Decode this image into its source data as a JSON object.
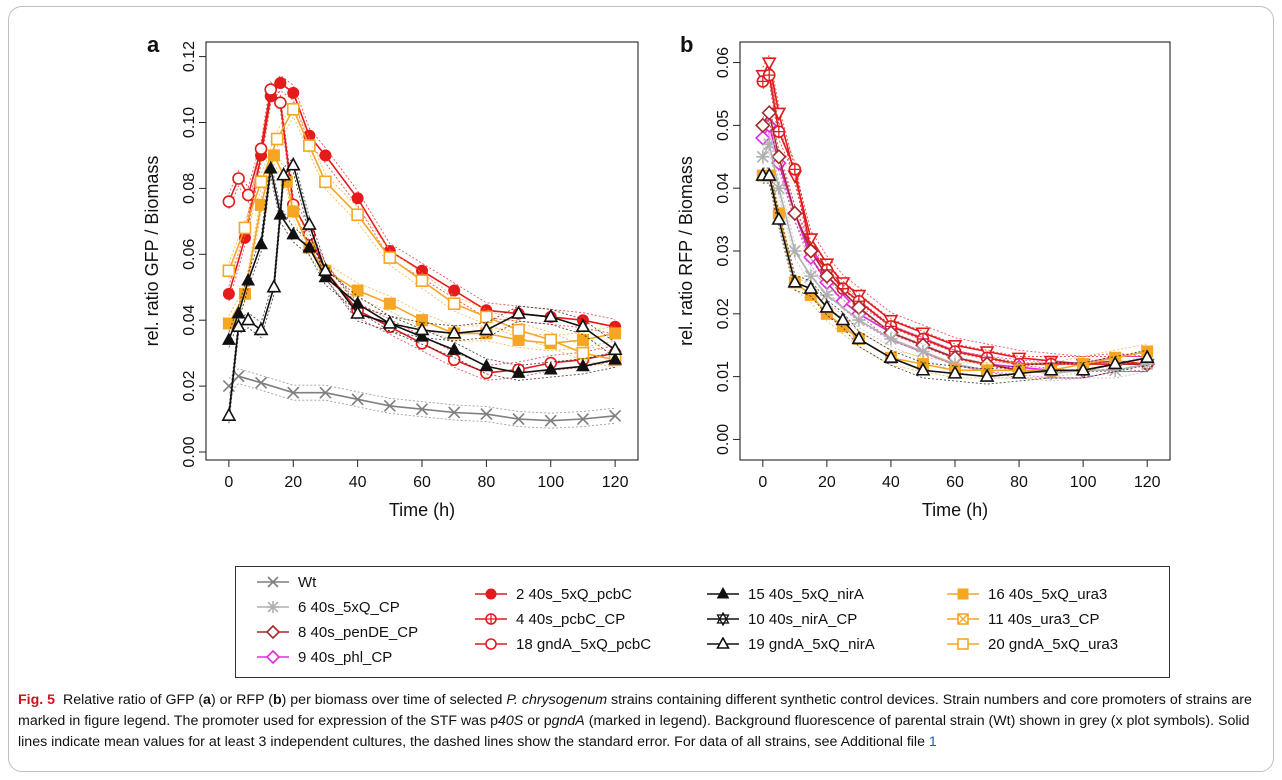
{
  "chart_data": [
    {
      "type": "line",
      "panel": "a",
      "xlabel": "Time (h)",
      "ylabel": "rel. ratio GFP / Biomass",
      "xlim": [
        -4,
        124
      ],
      "ylim": [
        0.0,
        0.122
      ],
      "xticks": [
        0,
        20,
        40,
        60,
        80,
        100,
        120
      ],
      "yticks": [
        0.0,
        0.02,
        0.04,
        0.06,
        0.08,
        0.1,
        0.12
      ],
      "ytick_labels": [
        "0.00",
        "0.02",
        "0.04",
        "0.06",
        "0.08",
        "0.10",
        "0.12"
      ],
      "grid": false,
      "series": [
        {
          "name": "Wt",
          "color": "#7f7f7f",
          "marker": "x",
          "x": [
            0,
            3,
            10,
            20,
            30,
            40,
            50,
            60,
            70,
            80,
            90,
            100,
            110,
            120
          ],
          "y": [
            0.02,
            0.023,
            0.021,
            0.018,
            0.018,
            0.016,
            0.014,
            0.013,
            0.012,
            0.0115,
            0.01,
            0.0095,
            0.01,
            0.011
          ]
        },
        {
          "name": "2 40s_5xQ_pcbC",
          "color": "#e41a1c",
          "marker": "filled-circle",
          "x": [
            0,
            5,
            10,
            13,
            16,
            20,
            25,
            30,
            40,
            50,
            60,
            70,
            80,
            90,
            100,
            110,
            120
          ],
          "y": [
            0.048,
            0.065,
            0.09,
            0.108,
            0.112,
            0.109,
            0.096,
            0.09,
            0.077,
            0.061,
            0.055,
            0.049,
            0.043,
            0.042,
            0.041,
            0.04,
            0.038
          ]
        },
        {
          "name": "18 gndA_5xQ_pcbC",
          "color": "#e41a1c",
          "marker": "open-circle",
          "x": [
            0,
            3,
            6,
            10,
            13,
            16,
            20,
            25,
            30,
            40,
            50,
            60,
            70,
            80,
            90,
            100,
            110,
            120
          ],
          "y": [
            0.076,
            0.083,
            0.078,
            0.092,
            0.11,
            0.106,
            0.075,
            0.066,
            0.055,
            0.043,
            0.038,
            0.033,
            0.028,
            0.024,
            0.025,
            0.027,
            0.028,
            0.03
          ]
        },
        {
          "name": "16 40s_5xQ_ura3",
          "color": "#f5a623",
          "marker": "filled-square",
          "x": [
            0,
            5,
            10,
            14,
            18,
            20,
            25,
            30,
            40,
            50,
            60,
            70,
            80,
            90,
            100,
            110,
            120
          ],
          "y": [
            0.039,
            0.048,
            0.075,
            0.09,
            0.082,
            0.073,
            0.062,
            0.055,
            0.049,
            0.045,
            0.04,
            0.036,
            0.036,
            0.034,
            0.033,
            0.034,
            0.036
          ]
        },
        {
          "name": "20 gndA_5xQ_ura3",
          "color": "#f5a623",
          "marker": "open-square",
          "x": [
            0,
            5,
            10,
            15,
            20,
            25,
            30,
            40,
            50,
            60,
            70,
            80,
            90,
            100,
            110,
            120
          ],
          "y": [
            0.055,
            0.068,
            0.082,
            0.095,
            0.104,
            0.093,
            0.082,
            0.072,
            0.059,
            0.052,
            0.045,
            0.041,
            0.037,
            0.034,
            0.03,
            0.028
          ]
        },
        {
          "name": "15 40s_5xQ_nirA",
          "color": "#111111",
          "marker": "filled-triangle",
          "x": [
            0,
            3,
            6,
            10,
            13,
            16,
            20,
            25,
            30,
            40,
            50,
            60,
            70,
            80,
            90,
            100,
            110,
            120
          ],
          "y": [
            0.034,
            0.042,
            0.052,
            0.063,
            0.086,
            0.072,
            0.066,
            0.062,
            0.053,
            0.045,
            0.039,
            0.035,
            0.031,
            0.026,
            0.024,
            0.025,
            0.026,
            0.028
          ]
        },
        {
          "name": "19 gndA_5xQ_nirA",
          "color": "#111111",
          "marker": "open-triangle",
          "x": [
            0,
            3,
            6,
            10,
            14,
            17,
            20,
            25,
            30,
            40,
            50,
            60,
            70,
            80,
            90,
            100,
            110,
            120
          ],
          "y": [
            0.011,
            0.038,
            0.04,
            0.037,
            0.05,
            0.084,
            0.087,
            0.069,
            0.055,
            0.042,
            0.039,
            0.037,
            0.036,
            0.037,
            0.042,
            0.041,
            0.038,
            0.031
          ]
        }
      ]
    },
    {
      "type": "line",
      "panel": "b",
      "xlabel": "Time (h)",
      "ylabel": "rel. ratio RFP / Biomass",
      "xlim": [
        -4,
        124
      ],
      "ylim": [
        -0.002,
        0.062
      ],
      "xticks": [
        0,
        20,
        40,
        60,
        80,
        100,
        120
      ],
      "yticks": [
        0.0,
        0.01,
        0.02,
        0.03,
        0.04,
        0.05,
        0.06
      ],
      "ytick_labels": [
        "0.00",
        "0.01",
        "0.02",
        "0.03",
        "0.04",
        "0.05",
        "0.06"
      ],
      "grid": false,
      "series": [
        {
          "name": "2 40s_5xQ_pcbC",
          "color": "#e41a1c",
          "marker": "open-triangle-down",
          "x": [
            0,
            2,
            5,
            10,
            15,
            20,
            25,
            30,
            40,
            50,
            60,
            70,
            80,
            90,
            100,
            110,
            120
          ],
          "y": [
            0.058,
            0.06,
            0.052,
            0.042,
            0.032,
            0.028,
            0.025,
            0.023,
            0.019,
            0.017,
            0.015,
            0.014,
            0.013,
            0.0125,
            0.012,
            0.0125,
            0.012
          ]
        },
        {
          "name": "4 40s_pcbC_CP",
          "color": "#e41a1c",
          "marker": "crossed-circle",
          "x": [
            0,
            2,
            5,
            10,
            15,
            20,
            25,
            30,
            40,
            50,
            60,
            70,
            80,
            90,
            100,
            110,
            120
          ],
          "y": [
            0.057,
            0.058,
            0.049,
            0.043,
            0.03,
            0.027,
            0.024,
            0.022,
            0.018,
            0.016,
            0.014,
            0.013,
            0.012,
            0.012,
            0.012,
            0.012,
            0.012
          ]
        },
        {
          "name": "9 40s_phl_CP",
          "color": "#e628e6",
          "marker": "open-diamond",
          "x": [
            0,
            2,
            5,
            10,
            15,
            20,
            25,
            30,
            40,
            50,
            60,
            70,
            80,
            90,
            100,
            110,
            120
          ],
          "y": [
            0.048,
            0.05,
            0.044,
            0.036,
            0.029,
            0.025,
            0.022,
            0.02,
            0.017,
            0.015,
            0.013,
            0.012,
            0.0115,
            0.011,
            0.011,
            0.012,
            0.012
          ]
        },
        {
          "name": "8 40s_penDE_CP",
          "color": "#a52a2a",
          "marker": "open-diamond",
          "x": [
            0,
            2,
            5,
            10,
            15,
            20,
            30,
            40,
            50,
            60,
            70,
            80,
            90,
            100,
            110,
            120
          ],
          "y": [
            0.05,
            0.052,
            0.045,
            0.036,
            0.03,
            0.026,
            0.021,
            0.017,
            0.015,
            0.013,
            0.012,
            0.011,
            0.011,
            0.011,
            0.012,
            0.012
          ]
        },
        {
          "name": "6 40s_5xQ_CP",
          "color": "#b0b0b0",
          "marker": "asterisk",
          "x": [
            0,
            2,
            5,
            10,
            15,
            20,
            30,
            40,
            50,
            60,
            70,
            80,
            90,
            100,
            110,
            120
          ],
          "y": [
            0.045,
            0.047,
            0.04,
            0.03,
            0.026,
            0.023,
            0.019,
            0.016,
            0.014,
            0.012,
            0.011,
            0.011,
            0.0105,
            0.011,
            0.011,
            0.012
          ]
        },
        {
          "name": "16 40s_5xQ_ura3",
          "color": "#f5a623",
          "marker": "filled-square",
          "x": [
            0,
            2,
            5,
            10,
            15,
            20,
            25,
            30,
            40,
            50,
            60,
            70,
            80,
            90,
            100,
            110,
            120
          ],
          "y": [
            0.042,
            0.042,
            0.036,
            0.025,
            0.023,
            0.02,
            0.018,
            0.016,
            0.013,
            0.012,
            0.011,
            0.011,
            0.011,
            0.011,
            0.012,
            0.013,
            0.014
          ]
        },
        {
          "name": "15 40s_5xQ_nirA",
          "color": "#111111",
          "marker": "open-triangle",
          "x": [
            0,
            2,
            5,
            10,
            15,
            20,
            25,
            30,
            40,
            50,
            60,
            70,
            80,
            90,
            100,
            110,
            120
          ],
          "y": [
            0.042,
            0.042,
            0.035,
            0.025,
            0.024,
            0.021,
            0.019,
            0.016,
            0.013,
            0.011,
            0.0105,
            0.01,
            0.0105,
            0.011,
            0.011,
            0.012,
            0.013
          ]
        }
      ]
    }
  ],
  "panels": {
    "a": "a",
    "b": "b"
  },
  "legend": {
    "items": [
      {
        "label": "Wt",
        "color": "#7f7f7f",
        "marker": "x"
      },
      {
        "label": "6 40s_5xQ_CP",
        "color": "#b0b0b0",
        "marker": "asterisk"
      },
      {
        "label": "8 40s_penDE_CP",
        "color": "#a52a2a",
        "marker": "open-diamond"
      },
      {
        "label": "9 40s_phl_CP",
        "color": "#e628e6",
        "marker": "open-diamond"
      },
      {
        "label": "2 40s_5xQ_pcbC",
        "color": "#e41a1c",
        "marker": "filled-circle"
      },
      {
        "label": "4 40s_pcbC_CP",
        "color": "#e41a1c",
        "marker": "crossed-circle"
      },
      {
        "label": "18 gndA_5xQ_pcbC",
        "color": "#e41a1c",
        "marker": "open-circle"
      },
      {
        "label": "15 40s_5xQ_nirA",
        "color": "#111111",
        "marker": "filled-triangle"
      },
      {
        "label": "10 40s_nirA_CP",
        "color": "#111111",
        "marker": "star-triangle"
      },
      {
        "label": "19 gndA_5xQ_nirA",
        "color": "#111111",
        "marker": "open-triangle"
      },
      {
        "label": "16 40s_5xQ_ura3",
        "color": "#f5a623",
        "marker": "filled-square"
      },
      {
        "label": "11 40s_ura3_CP",
        "color": "#f5a623",
        "marker": "crossed-square"
      },
      {
        "label": "20 gndA_5xQ_ura3",
        "color": "#f5a623",
        "marker": "open-square"
      }
    ]
  },
  "caption": {
    "label": "Fig. 5",
    "s1": "Relative ratio of GFP (",
    "a": "a",
    "s2": ") or RFP (",
    "b": "b",
    "s3": ") per biomass over time of selected ",
    "species": "P. chrysogenum",
    "s4": " strains containing different synthetic control devices. Strain numbers and core promoters of strains are marked in figure legend. The promoter used for expression of the STF was p",
    "p40s": "40S",
    "s5": " or p",
    "pgnda": "gndA",
    "s6": " (marked in legend). Background fluorescence of parental strain (Wt) shown in grey (x plot symbols). Solid lines indicate mean values for at least 3 independent cultures, the dashed lines show the standard error. For data of all strains, see Additional file ",
    "file_num": "1"
  }
}
